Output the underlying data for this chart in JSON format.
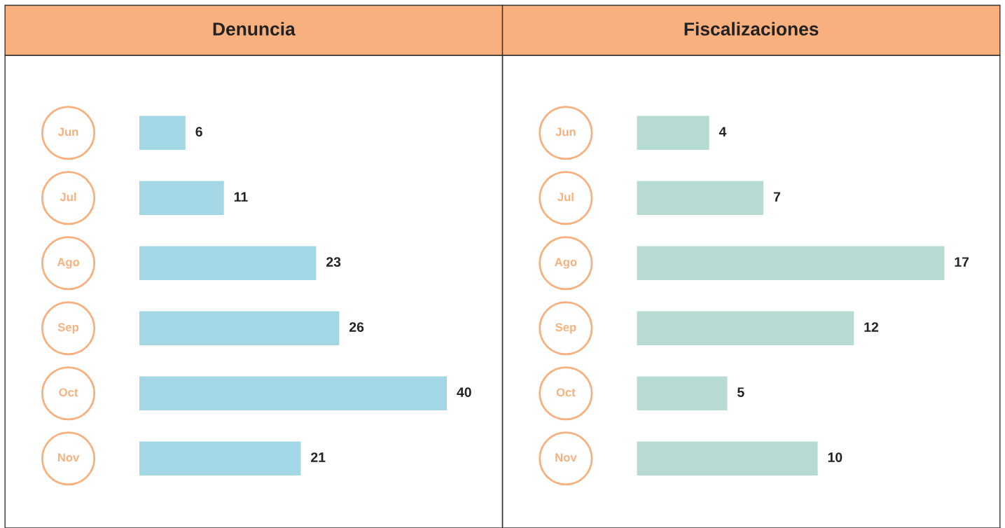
{
  "chart_data": [
    {
      "type": "bar",
      "title": "Denuncia",
      "orientation": "horizontal",
      "categories": [
        "Jun",
        "Jul",
        "Ago",
        "Sep",
        "Oct",
        "Nov"
      ],
      "series": [
        {
          "color": "#a3d7e5",
          "values": [
            6,
            11,
            23,
            26,
            40,
            21
          ]
        }
      ],
      "data_labels": true,
      "tick_labels": "y",
      "grid": false,
      "legend": false
    },
    {
      "type": "bar",
      "title": "Fiscalizaciones",
      "orientation": "horizontal",
      "categories": [
        "Jun",
        "Jul",
        "Ago",
        "Sep",
        "Oct",
        "Nov"
      ],
      "series": [
        {
          "color": "#b5dbd3",
          "values": [
            4,
            7,
            17,
            12,
            5,
            10
          ]
        }
      ],
      "data_labels": true,
      "tick_labels": "y",
      "grid": false,
      "legend": false
    }
  ]
}
